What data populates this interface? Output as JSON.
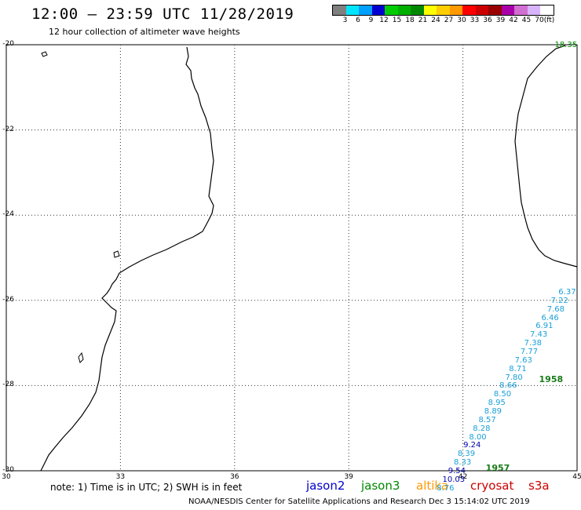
{
  "header": {
    "title": "12:00 – 23:59 UTC 11/28/2019",
    "subtitle": "12 hour collection of altimeter wave heights"
  },
  "colorbar": {
    "colors": [
      "#7f7f7f",
      "#00e5ff",
      "#00a0ff",
      "#0000d0",
      "#00cc00",
      "#00b000",
      "#008800",
      "#ffff00",
      "#ffcc00",
      "#ff9900",
      "#ff0000",
      "#cc0000",
      "#990000",
      "#aa00aa",
      "#d070d0",
      "#d8b4ff",
      "#ffffff"
    ],
    "labels": [
      "3",
      "6",
      "9",
      "12",
      "15",
      "18",
      "21",
      "24",
      "27",
      "30",
      "33",
      "36",
      "39",
      "42",
      "45",
      "70",
      "(ft)"
    ]
  },
  "axes": {
    "lat_labels": [
      "-20",
      "-22",
      "-24",
      "-26",
      "-28",
      "-30"
    ],
    "lat_values": [
      -20,
      -22,
      -24,
      -26,
      -28,
      -30
    ],
    "lon_labels": [
      "30",
      "33",
      "36",
      "39",
      "42",
      "45"
    ],
    "lon_values": [
      30,
      33,
      36,
      39,
      42,
      45
    ]
  },
  "track": {
    "color": "#1aa0d8",
    "points": [
      {
        "label": "18.35",
        "lon": 44.7,
        "lat": -20.0,
        "color": "#008800"
      },
      {
        "label": "6.37",
        "lon": 44.8,
        "lat": -25.8,
        "color": "#1aa0d8"
      },
      {
        "label": "7.22",
        "lon": 44.6,
        "lat": -26.0,
        "color": "#1aa0d8"
      },
      {
        "label": "7.68",
        "lon": 44.5,
        "lat": -26.2,
        "color": "#1aa0d8"
      },
      {
        "label": "6.46",
        "lon": 44.35,
        "lat": -26.4,
        "color": "#1aa0d8"
      },
      {
        "label": "6.91",
        "lon": 44.2,
        "lat": -26.6,
        "color": "#1aa0d8"
      },
      {
        "label": "7.43",
        "lon": 44.05,
        "lat": -26.8,
        "color": "#1aa0d8"
      },
      {
        "label": "7.38",
        "lon": 43.9,
        "lat": -27.0,
        "color": "#1aa0d8"
      },
      {
        "label": "7.77",
        "lon": 43.8,
        "lat": -27.2,
        "color": "#1aa0d8"
      },
      {
        "label": "7.63",
        "lon": 43.65,
        "lat": -27.4,
        "color": "#1aa0d8"
      },
      {
        "label": "8.71",
        "lon": 43.5,
        "lat": -27.6,
        "color": "#1aa0d8"
      },
      {
        "label": "7.80",
        "lon": 43.4,
        "lat": -27.8,
        "color": "#1aa0d8"
      },
      {
        "label": "8.66",
        "lon": 43.25,
        "lat": -28.0,
        "color": "#1aa0d8"
      },
      {
        "label": "8.50",
        "lon": 43.1,
        "lat": -28.2,
        "color": "#1aa0d8"
      },
      {
        "label": "8.95",
        "lon": 42.95,
        "lat": -28.4,
        "color": "#1aa0d8"
      },
      {
        "label": "8.89",
        "lon": 42.85,
        "lat": -28.6,
        "color": "#1aa0d8"
      },
      {
        "label": "8.57",
        "lon": 42.7,
        "lat": -28.8,
        "color": "#1aa0d8"
      },
      {
        "label": "8.28",
        "lon": 42.55,
        "lat": -29.0,
        "color": "#1aa0d8"
      },
      {
        "label": "8.00",
        "lon": 42.45,
        "lat": -29.2,
        "color": "#1aa0d8"
      },
      {
        "label": "9.24",
        "lon": 42.3,
        "lat": -29.4,
        "color": "#0000aa"
      },
      {
        "label": "8.39",
        "lon": 42.15,
        "lat": -29.6,
        "color": "#1aa0d8"
      },
      {
        "label": "8.33",
        "lon": 42.05,
        "lat": -29.8,
        "color": "#1aa0d8"
      },
      {
        "label": "9.54",
        "lon": 41.9,
        "lat": -30.0,
        "color": "#0000aa"
      },
      {
        "label": "10.03",
        "lon": 41.75,
        "lat": -30.2,
        "color": "#0000aa"
      },
      {
        "label": "8.76",
        "lon": 41.6,
        "lat": -30.4,
        "color": "#1aa0d8"
      }
    ],
    "times": [
      {
        "label": "1958",
        "lon": 44.0,
        "lat": -27.85
      },
      {
        "label": "1957",
        "lon": 42.6,
        "lat": -29.92
      }
    ]
  },
  "footer": {
    "note": "note: 1) Time is in UTC; 2) SWH is in feet",
    "satellites": [
      {
        "name": "jason2",
        "color": "#0000cc"
      },
      {
        "name": "jason3",
        "color": "#008800"
      },
      {
        "name": "altika",
        "color": "#ff9900"
      },
      {
        "name": "cryosat",
        "color": "#cc0000"
      },
      {
        "name": "s3a",
        "color": "#cc0000"
      }
    ],
    "credit": "NOAA/NESDIS Center for Satellite Applications and Research    Dec  3 15:14:02 UTC 2019"
  }
}
